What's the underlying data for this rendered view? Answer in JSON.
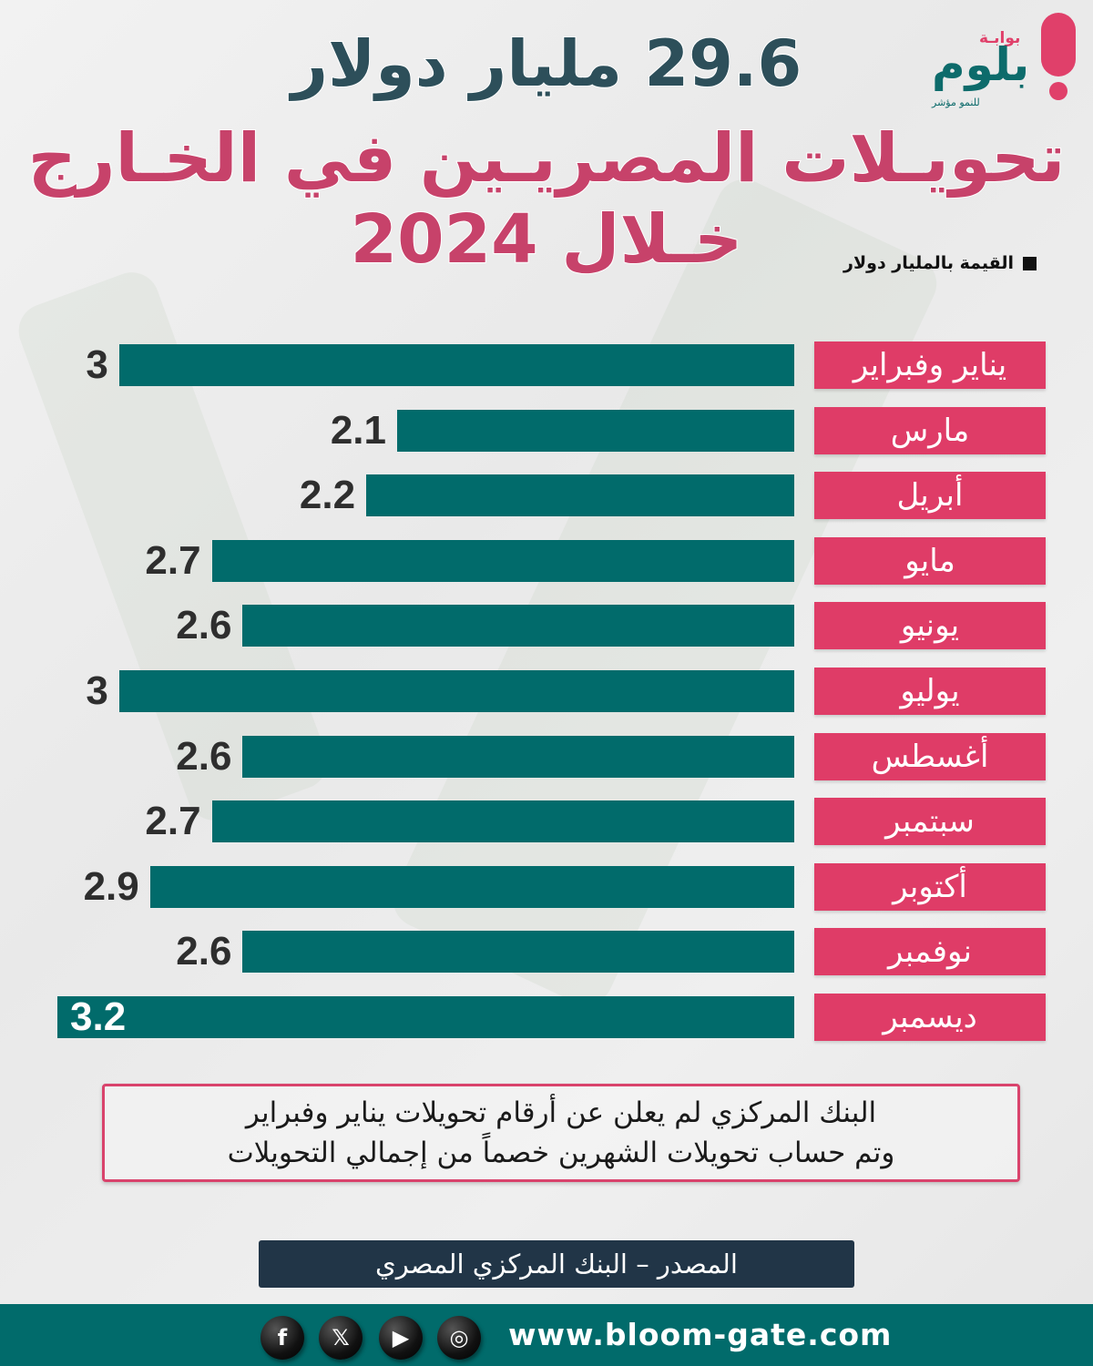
{
  "header": {
    "title_line1": "29.6 مليار دولار",
    "title_line2": "تحويـلات المصريـين في الخـارج خـلال 2024"
  },
  "logo": {
    "top": "بوابـة",
    "main": "بلوم",
    "sub": "للنمو مؤشر"
  },
  "legend": {
    "label": "القيمة بالمليار دولار"
  },
  "chart_data": {
    "type": "bar",
    "orientation": "horizontal",
    "title": "تحويلات المصريين في الخارج خلال 2024",
    "unit": "مليار دولار",
    "categories": [
      "يناير وفبراير",
      "مارس",
      "أبريل",
      "مايو",
      "يونيو",
      "يوليو",
      "أغسطس",
      "سبتمبر",
      "أكتوبر",
      "نوفمبر",
      "ديسمبر"
    ],
    "values": [
      3,
      2.1,
      2.2,
      2.7,
      2.6,
      3,
      2.6,
      2.7,
      2.9,
      2.6,
      3.2
    ],
    "labels": [
      "3",
      "2.1",
      "2.2",
      "2.7",
      "2.6",
      "3",
      "2.6",
      "2.7",
      "2.9",
      "2.6",
      "3.2"
    ],
    "total": 29.6,
    "legend": "القيمة بالمليار دولار",
    "xlabel": "",
    "ylabel": "",
    "grid": false,
    "legend_position": "top-right",
    "colors": {
      "bar": "#016b6b",
      "category": "#df3c67"
    }
  },
  "note": {
    "line1": "البنك المركزي لم يعلن عن أرقام تحويلات يناير وفبراير",
    "line2": "وتم حساب تحويلات الشهرين خصماً من إجمالي التحويلات"
  },
  "source": {
    "label": "المصدر – البنك المركزي المصري"
  },
  "footer": {
    "url": "www.bloom-gate.com",
    "social": [
      {
        "name": "facebook-icon",
        "glyph": "f"
      },
      {
        "name": "x-icon",
        "glyph": "𝕏"
      },
      {
        "name": "youtube-icon",
        "glyph": "▶"
      },
      {
        "name": "instagram-icon",
        "glyph": "◎"
      }
    ]
  }
}
